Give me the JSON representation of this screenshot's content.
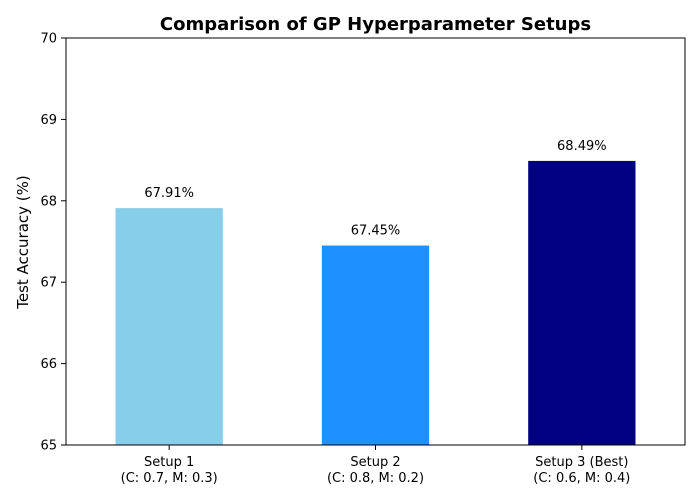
{
  "chart_data": {
    "type": "bar",
    "title": "Comparison of GP Hyperparameter Setups",
    "ylabel": "Test Accuracy (%)",
    "xlabel": "",
    "ylim": [
      65,
      70
    ],
    "yticks": [
      65,
      66,
      67,
      68,
      69,
      70
    ],
    "grid": false,
    "categories": [
      [
        "Setup 1",
        "(C: 0.7, M: 0.3)"
      ],
      [
        "Setup 2",
        "(C: 0.8, M: 0.2)"
      ],
      [
        "Setup 3 (Best)",
        "(C: 0.6, M: 0.4)"
      ]
    ],
    "values": [
      67.91,
      67.45,
      68.49
    ],
    "data_labels": [
      "67.91%",
      "67.45%",
      "68.49%"
    ],
    "colors": [
      "#87CEEB",
      "#1E90FF",
      "#000080"
    ]
  }
}
